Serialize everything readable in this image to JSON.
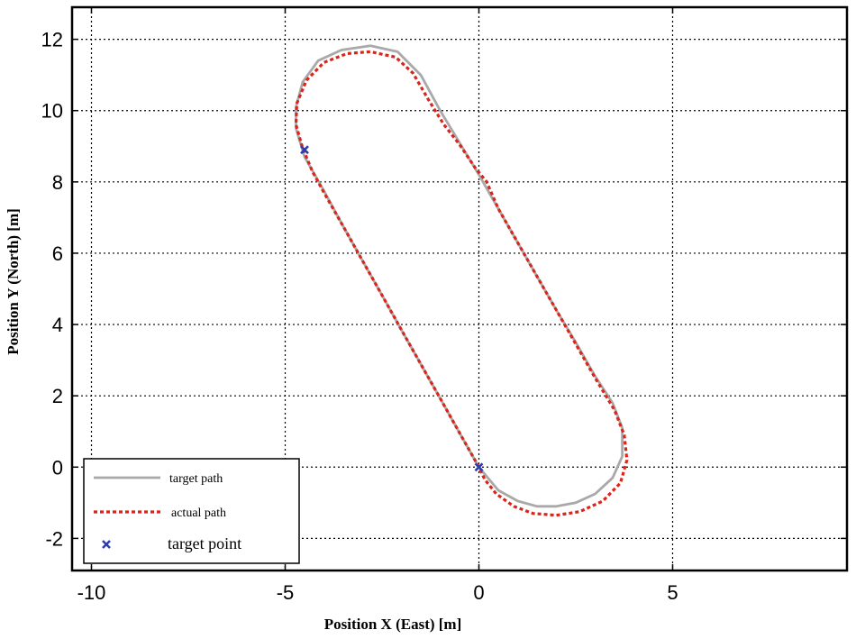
{
  "chart_data": {
    "type": "line",
    "xlabel": "Position X (East) [m]",
    "ylabel": "Position Y (North) [m]",
    "xlim": [
      -10.5,
      9.5
    ],
    "ylim": [
      -2.9,
      12.9
    ],
    "xticks": [
      -10,
      -5,
      0,
      5
    ],
    "yticks": [
      -2,
      0,
      2,
      4,
      6,
      8,
      10,
      12
    ],
    "xtick_labels": [
      "-10",
      "-5",
      "0",
      "5"
    ],
    "ytick_labels": [
      "-2",
      "0",
      "2",
      "4",
      "6",
      "8",
      "10",
      "12"
    ],
    "grid": true,
    "legend_position": "bottom-left",
    "series": [
      {
        "name": "target path",
        "color": "#a9a9a9",
        "style": "solid",
        "points": [
          [
            0.0,
            0.0
          ],
          [
            -0.5,
            0.96
          ],
          [
            -1.0,
            1.93
          ],
          [
            -1.5,
            2.89
          ],
          [
            -2.0,
            3.85
          ],
          [
            -2.5,
            4.82
          ],
          [
            -3.0,
            5.78
          ],
          [
            -3.5,
            6.75
          ],
          [
            -4.0,
            7.75
          ],
          [
            -4.5,
            8.7
          ],
          [
            -4.72,
            9.5
          ],
          [
            -4.72,
            10.1
          ],
          [
            -4.55,
            10.8
          ],
          [
            -4.15,
            11.4
          ],
          [
            -3.55,
            11.7
          ],
          [
            -2.8,
            11.82
          ],
          [
            -2.1,
            11.65
          ],
          [
            -1.5,
            11.0
          ],
          [
            -1.0,
            10.0
          ],
          [
            -0.5,
            9.1
          ],
          [
            0.0,
            8.2
          ],
          [
            0.5,
            7.25
          ],
          [
            1.0,
            6.3
          ],
          [
            1.5,
            5.35
          ],
          [
            2.0,
            4.4
          ],
          [
            2.5,
            3.5
          ],
          [
            3.0,
            2.55
          ],
          [
            3.45,
            1.8
          ],
          [
            3.7,
            1.1
          ],
          [
            3.7,
            0.3
          ],
          [
            3.45,
            -0.3
          ],
          [
            3.0,
            -0.75
          ],
          [
            2.5,
            -1.0
          ],
          [
            2.0,
            -1.1
          ],
          [
            1.5,
            -1.1
          ],
          [
            1.0,
            -0.95
          ],
          [
            0.5,
            -0.65
          ],
          [
            0.0,
            0.0
          ]
        ]
      },
      {
        "name": "actual path",
        "color": "#d9261c",
        "style": "dotted",
        "points": [
          [
            0.0,
            0.0
          ],
          [
            -0.5,
            0.96
          ],
          [
            -1.0,
            1.93
          ],
          [
            -1.5,
            2.89
          ],
          [
            -2.0,
            3.85
          ],
          [
            -2.5,
            4.82
          ],
          [
            -3.0,
            5.78
          ],
          [
            -3.5,
            6.75
          ],
          [
            -4.0,
            7.7
          ],
          [
            -4.3,
            8.3
          ],
          [
            -4.55,
            8.95
          ],
          [
            -4.72,
            9.6
          ],
          [
            -4.7,
            10.2
          ],
          [
            -4.45,
            10.85
          ],
          [
            -4.0,
            11.35
          ],
          [
            -3.4,
            11.6
          ],
          [
            -2.8,
            11.65
          ],
          [
            -2.15,
            11.5
          ],
          [
            -1.7,
            11.05
          ],
          [
            -1.3,
            10.3
          ],
          [
            -0.9,
            9.6
          ],
          [
            -0.5,
            9.05
          ],
          [
            -0.1,
            8.4
          ],
          [
            0.2,
            8.0
          ],
          [
            0.5,
            7.25
          ],
          [
            1.0,
            6.3
          ],
          [
            1.5,
            5.35
          ],
          [
            2.0,
            4.4
          ],
          [
            2.5,
            3.45
          ],
          [
            3.0,
            2.5
          ],
          [
            3.5,
            1.6
          ],
          [
            3.75,
            0.9
          ],
          [
            3.82,
            0.2
          ],
          [
            3.65,
            -0.45
          ],
          [
            3.2,
            -0.95
          ],
          [
            2.6,
            -1.25
          ],
          [
            2.0,
            -1.35
          ],
          [
            1.4,
            -1.3
          ],
          [
            0.9,
            -1.1
          ],
          [
            0.45,
            -0.75
          ],
          [
            0.15,
            -0.35
          ],
          [
            0.0,
            0.0
          ]
        ]
      },
      {
        "name": "target point",
        "color": "#2e3cae",
        "marker": "x",
        "points": [
          [
            0.0,
            0.0
          ],
          [
            -4.5,
            8.9
          ]
        ]
      }
    ]
  }
}
